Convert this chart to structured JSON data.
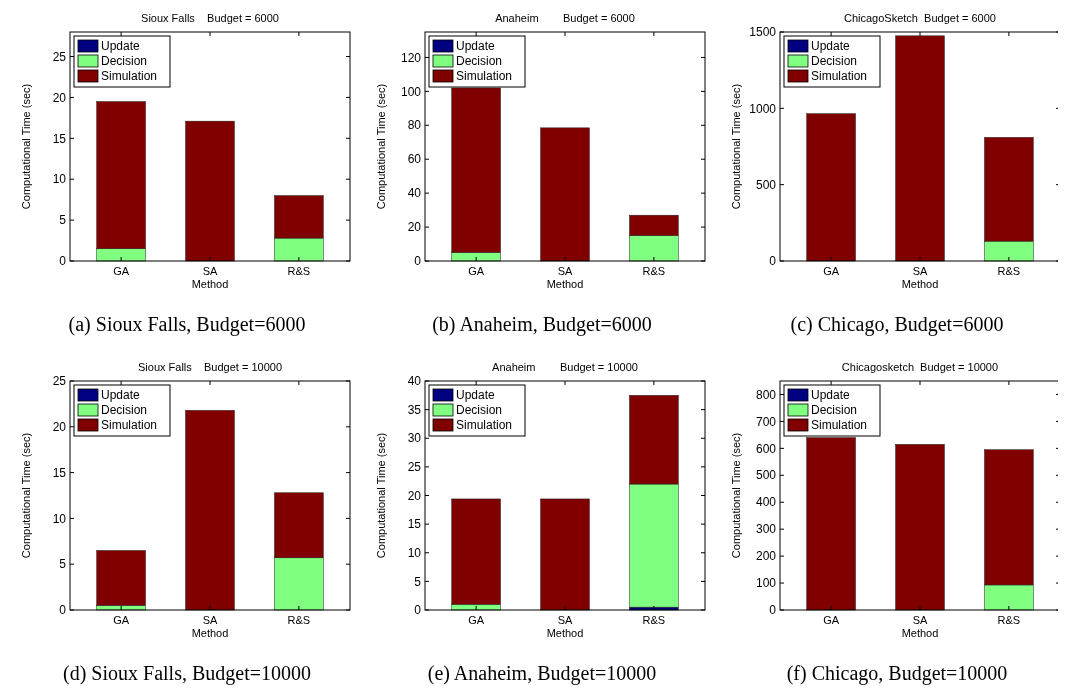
{
  "chart_data": [
    {
      "type": "bar",
      "title": "Sioux Falls    Budget = 6000",
      "xlabel": "Method",
      "ylabel": "Computational Time (sec)",
      "categories": [
        "GA",
        "SA",
        "R&S"
      ],
      "stacked": true,
      "legend": "top left",
      "ylim": [
        0,
        28
      ],
      "yticks": [
        0,
        5,
        10,
        15,
        20,
        25
      ],
      "annotations": [
        "(a) Sioux Falls, Budget=6000"
      ],
      "series": [
        {
          "name": "Update",
          "color": "#000080",
          "values": [
            0,
            0,
            0
          ]
        },
        {
          "name": "Decision",
          "color": "#80ff80",
          "values": [
            1.5,
            null,
            2.8
          ]
        },
        {
          "name": "Simulation",
          "color": "#800000",
          "values": [
            18,
            17.1,
            5.2
          ]
        }
      ]
    },
    {
      "type": "bar",
      "title": "Anaheim        Budget = 6000",
      "xlabel": "Method",
      "ylabel": "Computational Time (sec)",
      "categories": [
        "GA",
        "SA",
        "R&S"
      ],
      "stacked": true,
      "legend": "top left",
      "ylim": [
        0,
        135
      ],
      "yticks": [
        0,
        20,
        40,
        60,
        80,
        100,
        120
      ],
      "annotations": [
        "(b) Anaheim, Budget=6000"
      ],
      "series": [
        {
          "name": "Update",
          "color": "#000080",
          "values": [
            0,
            0,
            0
          ]
        },
        {
          "name": "Decision",
          "color": "#80ff80",
          "values": [
            5,
            0,
            15
          ]
        },
        {
          "name": "Simulation",
          "color": "#800000",
          "values": [
            97,
            78.5,
            12
          ]
        }
      ]
    },
    {
      "type": "bar",
      "title": "ChicagoSketch  Budget = 6000",
      "xlabel": "Method",
      "ylabel": "Computational Time (sec)",
      "categories": [
        "GA",
        "SA",
        "R&S"
      ],
      "stacked": true,
      "legend": "top left",
      "ylim": [
        0,
        1500
      ],
      "yticks": [
        0,
        500,
        1000,
        1500
      ],
      "annotations": [
        "(c) Chicago, Budget=6000"
      ],
      "series": [
        {
          "name": "Update",
          "color": "#000080",
          "values": [
            0,
            0,
            0
          ]
        },
        {
          "name": "Decision",
          "color": "#80ff80",
          "values": [
            0,
            0,
            130
          ]
        },
        {
          "name": "Simulation",
          "color": "#800000",
          "values": [
            965,
            1475,
            680
          ]
        }
      ]
    },
    {
      "type": "bar",
      "title": "Sioux Falls    Budget = 10000",
      "xlabel": "Method",
      "ylabel": "Computational Time (sec)",
      "categories": [
        "GA",
        "SA",
        "R&S"
      ],
      "stacked": true,
      "legend": "top left",
      "ylim": [
        0,
        25
      ],
      "yticks": [
        0,
        5,
        10,
        15,
        20,
        25
      ],
      "annotations": [
        "(d) Sioux Falls, Budget=10000"
      ],
      "series": [
        {
          "name": "Update",
          "color": "#000080",
          "values": [
            0,
            0,
            0
          ]
        },
        {
          "name": "Decision",
          "color": "#80ff80",
          "values": [
            0.5,
            null,
            5.7
          ]
        },
        {
          "name": "Simulation",
          "color": "#800000",
          "values": [
            6,
            21.8,
            7.1
          ]
        }
      ]
    },
    {
      "type": "bar",
      "title": "Anaheim        Budget = 10000",
      "xlabel": "Method",
      "ylabel": "Computational Time (sec)",
      "categories": [
        "GA",
        "SA",
        "R&S"
      ],
      "stacked": true,
      "legend": "top left",
      "ylim": [
        0,
        40
      ],
      "yticks": [
        0,
        5,
        10,
        15,
        20,
        25,
        30,
        35,
        40
      ],
      "annotations": [
        "(e) Anaheim, Budget=10000"
      ],
      "series": [
        {
          "name": "Update",
          "color": "#000080",
          "values": [
            0,
            0,
            0.5
          ]
        },
        {
          "name": "Decision",
          "color": "#80ff80",
          "values": [
            1,
            0,
            21.5
          ]
        },
        {
          "name": "Simulation",
          "color": "#800000",
          "values": [
            18.4,
            19.4,
            15.5
          ]
        }
      ]
    },
    {
      "type": "bar",
      "title": "Chicagosketch  Budget = 10000",
      "xlabel": "Method",
      "ylabel": "Computational Time (sec)",
      "categories": [
        "GA",
        "SA",
        "R&S"
      ],
      "stacked": true,
      "legend": "top left",
      "ylim": [
        0,
        850
      ],
      "yticks": [
        0,
        100,
        200,
        300,
        400,
        500,
        600,
        700,
        800
      ],
      "annotations": [
        "(f) Chicago, Budget=10000"
      ],
      "series": [
        {
          "name": "Update",
          "color": "#000080",
          "values": [
            0,
            0,
            0
          ]
        },
        {
          "name": "Decision",
          "color": "#80ff80",
          "values": [
            0,
            0,
            93
          ]
        },
        {
          "name": "Simulation",
          "color": "#800000",
          "values": [
            640,
            615,
            502
          ]
        }
      ]
    }
  ]
}
